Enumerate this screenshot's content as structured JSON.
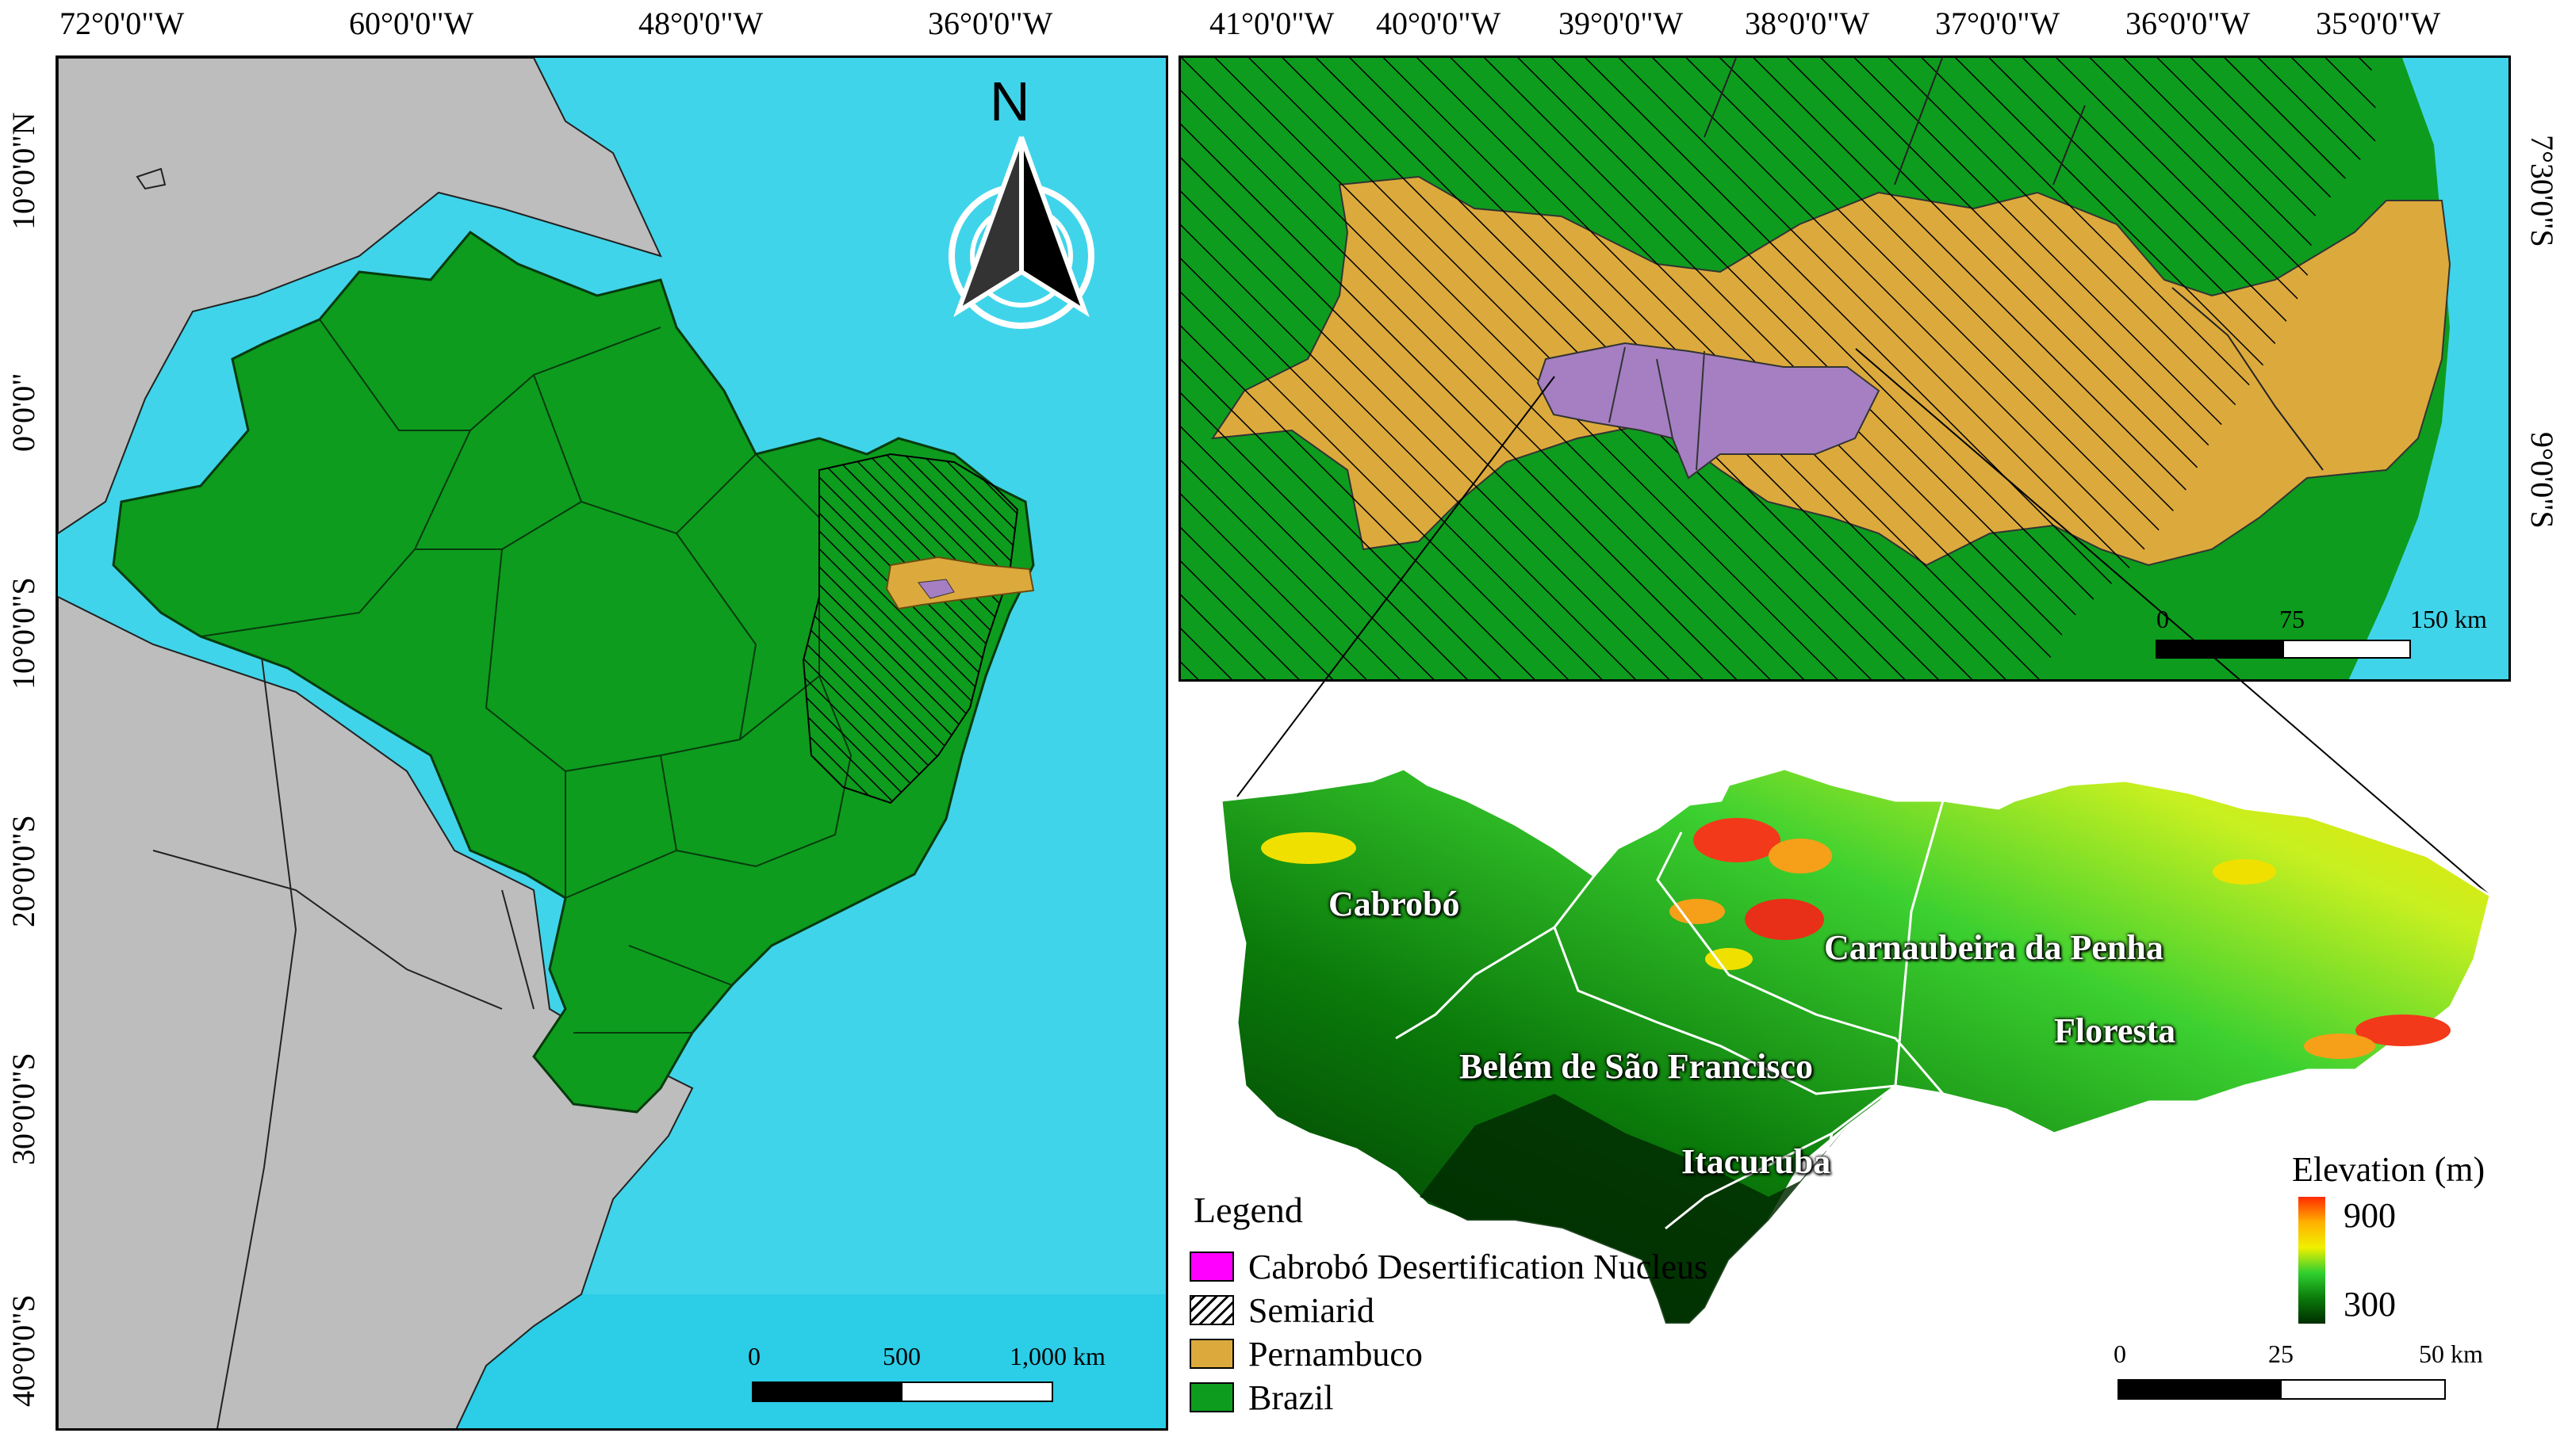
{
  "left_map": {
    "top_ticks": [
      "72°0'0\"W",
      "60°0'0\"W",
      "48°0'0\"W",
      "36°0'0\"W"
    ],
    "left_ticks": [
      "10°0'0\"N",
      "0°0'0\"",
      "10°0'0\"S",
      "20°0'0\"S",
      "30°0'0\"S",
      "40°0'0\"S"
    ],
    "north_label": "N",
    "scale": {
      "labels": [
        "0",
        "500",
        "1,000 km"
      ]
    }
  },
  "inset_map": {
    "top_ticks": [
      "41°0'0\"W",
      "40°0'0\"W",
      "39°0'0\"W",
      "38°0'0\"W",
      "37°0'0\"W",
      "36°0'0\"W",
      "35°0'0\"W"
    ],
    "right_ticks": [
      "7°30'0\"S",
      "9°0'0\"S"
    ],
    "scale": {
      "labels": [
        "0",
        "75",
        "150 km"
      ]
    }
  },
  "elevation_map": {
    "municipalities": [
      "Cabrobó",
      "Carnaubeira da Penha",
      "Floresta",
      "Belém de São Francisco",
      "Itacuruba"
    ],
    "elevation_title": "Elevation (m)",
    "elevation_max": "900",
    "elevation_min": "300",
    "scale": {
      "labels": [
        "0",
        "25",
        "50 km"
      ]
    }
  },
  "legend": {
    "title": "Legend",
    "items": [
      {
        "label": "Cabrobó Desertification Nucleus",
        "color": "#ff00ff"
      },
      {
        "label": "Semiarid",
        "color": "hatch"
      },
      {
        "label": "Pernambuco",
        "color": "#dcaa3c"
      },
      {
        "label": "Brazil",
        "color": "#0d9c1e"
      }
    ]
  },
  "colors": {
    "ocean": "#40d4ea",
    "land_other": "#bdbdbd",
    "brazil": "#0d9c1e",
    "pernambuco": "#dcaa3c",
    "nucleus_map": "#a57fc2"
  }
}
